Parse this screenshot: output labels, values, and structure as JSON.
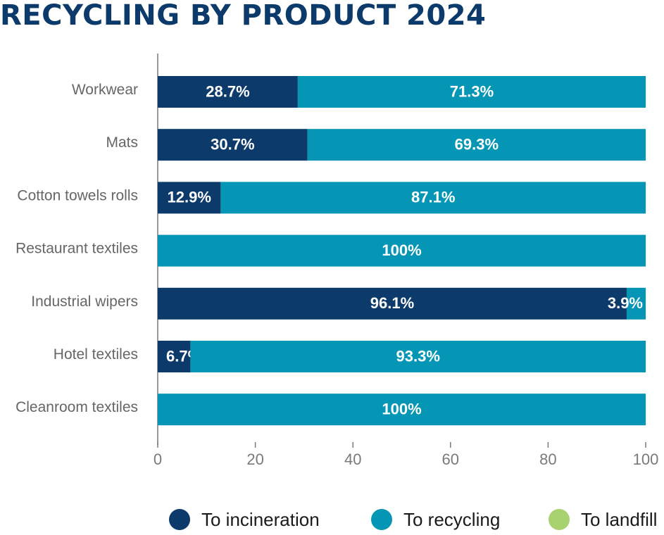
{
  "title": "RECYCLING BY PRODUCT 2024",
  "colors": {
    "incineration": "#0b3a6b",
    "recycling": "#0696b5",
    "landfill": "#a8d16f",
    "axis": "#7a7a7a",
    "label_text": "#ffffff"
  },
  "legend": [
    {
      "key": "incineration",
      "label": "To incineration"
    },
    {
      "key": "recycling",
      "label": "To recycling"
    },
    {
      "key": "landfill",
      "label": "To landfill"
    }
  ],
  "chart_data": {
    "type": "bar",
    "orientation": "horizontal",
    "stacked": true,
    "title": "RECYCLING BY PRODUCT 2024",
    "categories": [
      "Workwear",
      "Mats",
      "Cotton towels rolls",
      "Restaurant textiles",
      "Industrial wipers",
      "Hotel textiles",
      "Cleanroom textiles"
    ],
    "series": [
      {
        "key": "incineration",
        "name": "To incineration",
        "values": [
          28.7,
          30.7,
          12.9,
          0,
          96.1,
          6.7,
          0
        ],
        "labels": [
          "28.7%",
          "30.7%",
          "12.9%",
          "",
          "96.1%",
          "6.7%",
          ""
        ]
      },
      {
        "key": "recycling",
        "name": "To recycling",
        "values": [
          71.3,
          69.3,
          87.1,
          100,
          3.9,
          93.3,
          100
        ],
        "labels": [
          "71.3%",
          "69.3%",
          "87.1%",
          "100%",
          "3.9%",
          "93.3%",
          "100%"
        ]
      },
      {
        "key": "landfill",
        "name": "To landfill",
        "values": [
          0,
          0,
          0,
          0,
          0,
          0,
          0
        ],
        "labels": [
          "",
          "",
          "",
          "",
          "",
          "",
          ""
        ]
      }
    ],
    "xlim": [
      0,
      100
    ],
    "xticks": [
      "0",
      "20",
      "40",
      "60",
      "80",
      "100"
    ],
    "xlabel": "",
    "ylabel": "",
    "grid": false,
    "legend_position": "bottom"
  }
}
